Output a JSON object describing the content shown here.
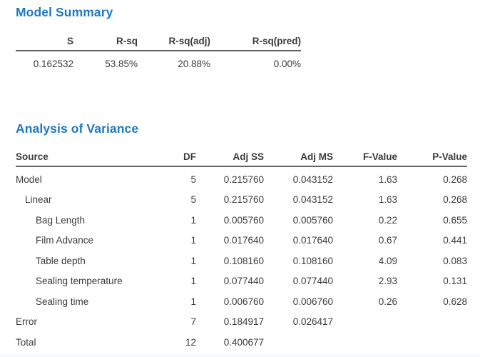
{
  "colors": {
    "title_blue": "#1e79c0",
    "body_text": "#3b3b3b",
    "header_rule": "#636363"
  },
  "model_summary": {
    "title": "Model Summary",
    "headers": [
      "S",
      "R-sq",
      "R-sq(adj)",
      "R-sq(pred)"
    ],
    "values": [
      "0.162532",
      "53.85%",
      "20.88%",
      "0.00%"
    ]
  },
  "anova": {
    "title": "Analysis of Variance",
    "headers": [
      "Source",
      "DF",
      "Adj SS",
      "Adj MS",
      "F-Value",
      "P-Value"
    ],
    "rows": [
      {
        "source": "Model",
        "df": "5",
        "adj_ss": "0.215760",
        "adj_ms": "0.043152",
        "f_value": "1.63",
        "p_value": "0.268"
      },
      {
        "source": "Linear",
        "df": "5",
        "adj_ss": "0.215760",
        "adj_ms": "0.043152",
        "f_value": "1.63",
        "p_value": "0.268"
      },
      {
        "source": "Bag Length",
        "df": "1",
        "adj_ss": "0.005760",
        "adj_ms": "0.005760",
        "f_value": "0.22",
        "p_value": "0.655"
      },
      {
        "source": "Film Advance",
        "df": "1",
        "adj_ss": "0.017640",
        "adj_ms": "0.017640",
        "f_value": "0.67",
        "p_value": "0.441"
      },
      {
        "source": "Table depth",
        "df": "1",
        "adj_ss": "0.108160",
        "adj_ms": "0.108160",
        "f_value": "4.09",
        "p_value": "0.083"
      },
      {
        "source": "Sealing temperature",
        "df": "1",
        "adj_ss": "0.077440",
        "adj_ms": "0.077440",
        "f_value": "2.93",
        "p_value": "0.131"
      },
      {
        "source": "Sealing time",
        "df": "1",
        "adj_ss": "0.006760",
        "adj_ms": "0.006760",
        "f_value": "0.26",
        "p_value": "0.628"
      },
      {
        "source": "Error",
        "df": "7",
        "adj_ss": "0.184917",
        "adj_ms": "0.026417",
        "f_value": "",
        "p_value": ""
      },
      {
        "source": "Total",
        "df": "12",
        "adj_ss": "0.400677",
        "adj_ms": "",
        "f_value": "",
        "p_value": ""
      }
    ]
  }
}
